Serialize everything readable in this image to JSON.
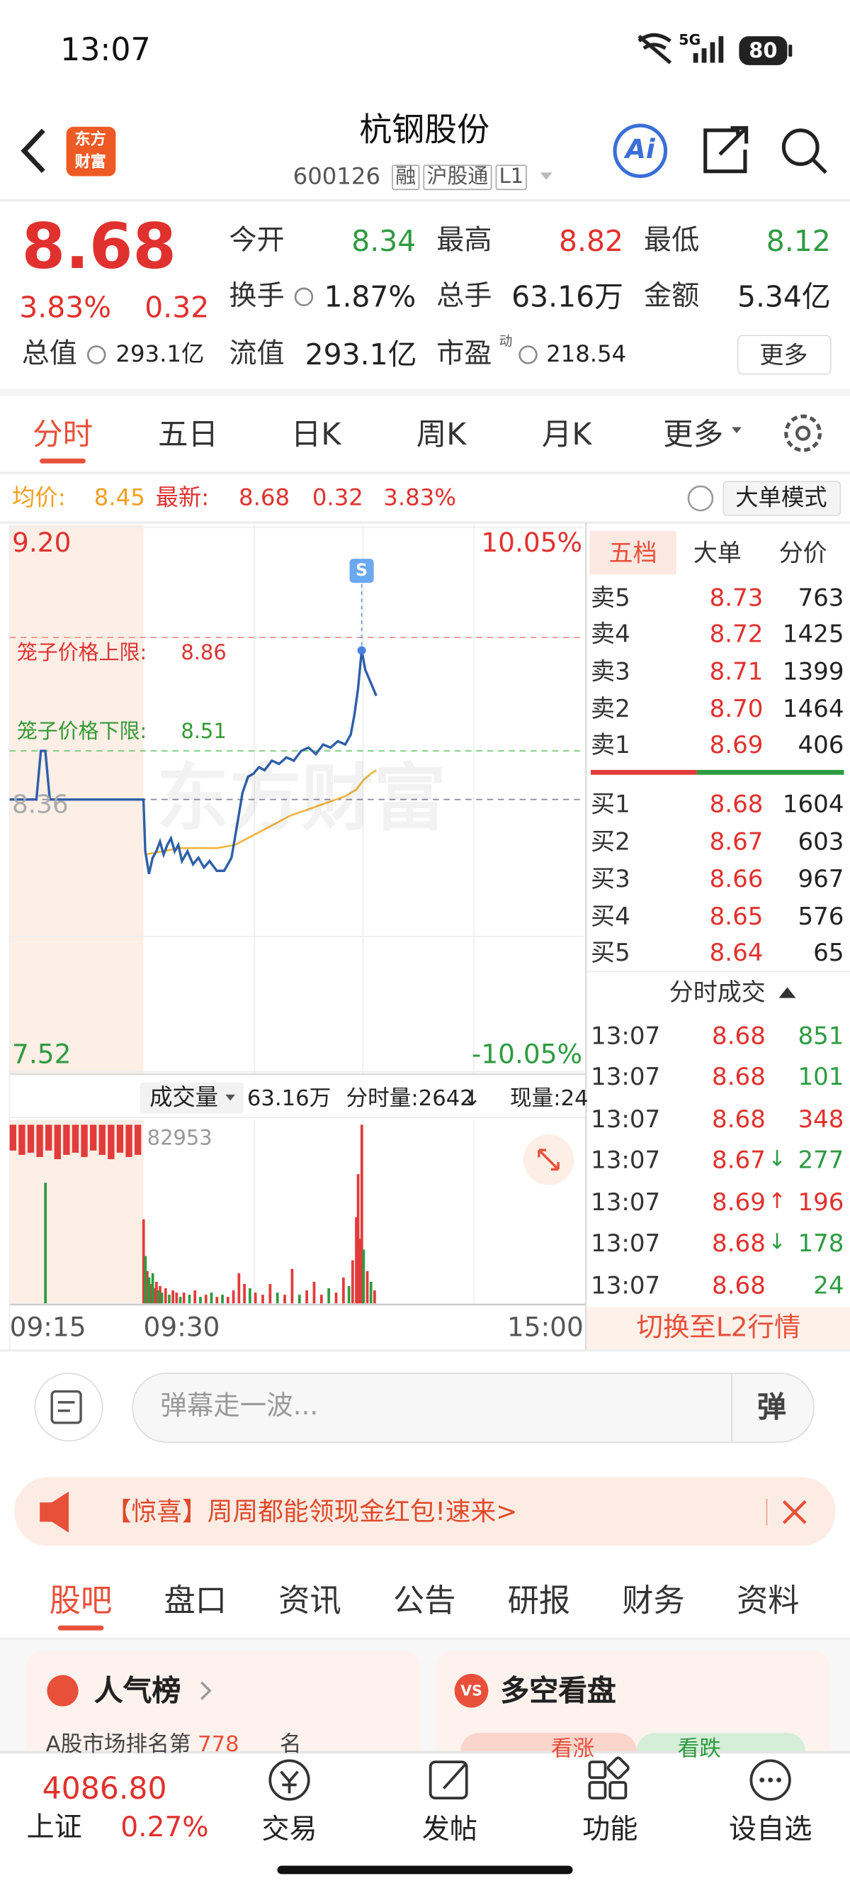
{
  "status": {
    "time": "13:07",
    "network": "5G",
    "battery": "80"
  },
  "header": {
    "logo": [
      "东方",
      "财富"
    ],
    "title": "杭钢股份",
    "code": "600126",
    "tags": [
      "融",
      "沪股通",
      "L1"
    ],
    "ai": "Ai"
  },
  "quote": {
    "price": "8.68",
    "change_pct": "3.83%",
    "change": "0.32",
    "fields": [
      {
        "label": "今开",
        "value": "8.34",
        "color": "#2e9b41"
      },
      {
        "label": "最高",
        "value": "8.82",
        "color": "#e0312e"
      },
      {
        "label": "最低",
        "value": "8.12",
        "color": "#2e9b41"
      },
      {
        "label": "换手",
        "value": "1.87%",
        "color": "#222222"
      },
      {
        "label": "总手",
        "value": "63.16万",
        "color": "#222222"
      },
      {
        "label": "金额",
        "value": "5.34亿",
        "color": "#222222"
      }
    ],
    "market_cap": {
      "label": "总值",
      "value": "293.1亿"
    },
    "float_cap": {
      "label": "流值",
      "value": "293.1亿"
    },
    "pe": {
      "label": "市盈",
      "sup": "动",
      "value": "218.54"
    },
    "more": "更多"
  },
  "tabs": [
    "分时",
    "五日",
    "日K",
    "周K",
    "月K",
    "更多"
  ],
  "info": {
    "avg_label": "均价:",
    "avg": "8.45",
    "latest_label": "最新:",
    "latest": "8.68",
    "change": "0.32",
    "change_pct": "3.83%",
    "mode": "大单模式"
  },
  "intraday": {
    "ylim": [
      7.52,
      9.2
    ],
    "yticks": [
      {
        "value": 9.2,
        "label": "9.20"
      },
      7.52
    ],
    "pct_labels": [
      "10.05%",
      "-10.05%"
    ],
    "prev_close": 8.36,
    "xticks": [
      "09:15",
      "09:30",
      "15:00"
    ],
    "watermark": "东方财富",
    "signal": "S",
    "cage_upper": {
      "label": "笼子价格上限:",
      "value": 8.86
    },
    "cage_lower": {
      "label": "笼子价格下限:",
      "value": 8.51
    },
    "price": {
      "color": "#2f5fa8",
      "x": [
        -15,
        -12,
        -11.5,
        -11,
        -10.5,
        0,
        1,
        3,
        5,
        7,
        9,
        11,
        13,
        15,
        17,
        19,
        21,
        24,
        27,
        30,
        33,
        36,
        40,
        44,
        48,
        51,
        54,
        57,
        60,
        63,
        66,
        70,
        74,
        78,
        82,
        86,
        90,
        94,
        98,
        102,
        106,
        110,
        113,
        115,
        117,
        119,
        121,
        124,
        127
      ],
      "values": [
        8.36,
        8.36,
        8.51,
        8.51,
        8.36,
        8.36,
        8.2,
        8.13,
        8.18,
        8.2,
        8.23,
        8.19,
        8.22,
        8.24,
        8.2,
        8.22,
        8.17,
        8.2,
        8.16,
        8.18,
        8.15,
        8.17,
        8.14,
        8.14,
        8.18,
        8.28,
        8.38,
        8.43,
        8.44,
        8.46,
        8.45,
        8.48,
        8.47,
        8.49,
        8.48,
        8.51,
        8.52,
        8.5,
        8.53,
        8.52,
        8.54,
        8.53,
        8.56,
        8.62,
        8.7,
        8.82,
        8.76,
        8.72,
        8.68
      ]
    },
    "avg": {
      "color": "#f2b43a",
      "x": [
        1,
        10,
        20,
        30,
        40,
        50,
        60,
        70,
        80,
        90,
        100,
        110,
        116,
        120,
        124,
        127
      ],
      "values": [
        8.19,
        8.2,
        8.21,
        8.21,
        8.21,
        8.22,
        8.25,
        8.28,
        8.31,
        8.33,
        8.35,
        8.37,
        8.39,
        8.42,
        8.44,
        8.45
      ]
    }
  },
  "volume": {
    "title": "成交量",
    "total": "63.16万",
    "minute_label": "分时量:2642",
    "minute_arrow": "↓",
    "current": "现量:24",
    "ylim": [
      0,
      82953
    ],
    "yticks": [
      82953
    ],
    "auction": {
      "color": "#e23b3b",
      "x": [
        -15,
        -14,
        -13,
        -12,
        -11,
        -10,
        -9,
        -8,
        -7,
        -6,
        -5,
        -4,
        -3,
        -2,
        -1
      ],
      "values": [
        12000,
        14000,
        13000,
        15000,
        12000,
        16000,
        14000,
        13000,
        15000,
        12000,
        14000,
        16000,
        13000,
        15000,
        14000
      ]
    },
    "series": [
      {
        "color": "#e23b3b",
        "x": [
          0,
          2,
          4,
          6,
          7,
          9,
          12,
          16,
          18,
          22,
          28,
          34,
          40,
          46,
          49,
          52,
          55,
          61,
          65,
          69,
          77,
          81,
          89,
          93,
          97,
          105,
          109,
          114,
          116,
          117,
          118,
          119,
          122,
          126
        ],
        "values": [
          39000,
          15000,
          9000,
          7000,
          10000,
          8000,
          7000,
          6000,
          5000,
          5000,
          6000,
          4000,
          3000,
          3000,
          6000,
          14000,
          9000,
          5000,
          4000,
          9000,
          4000,
          16000,
          6000,
          10000,
          4000,
          5000,
          12000,
          20000,
          40000,
          60000,
          30000,
          82953,
          15000,
          6000
        ]
      },
      {
        "color": "#2e9b41",
        "x": [
          -11,
          1,
          3,
          5,
          8,
          10,
          14,
          20,
          25,
          31,
          37,
          43,
          58,
          73,
          85,
          101,
          112,
          120,
          124
        ],
        "values": [
          56000,
          22000,
          12000,
          14000,
          6000,
          5000,
          4000,
          3000,
          4000,
          3000,
          5000,
          4000,
          7000,
          5000,
          4000,
          7000,
          8000,
          25000,
          10000
        ]
      }
    ]
  },
  "order_book": {
    "tabs": [
      "五档",
      "大单",
      "分价"
    ],
    "asks": [
      {
        "label": "卖5",
        "price": "8.73",
        "volume": "763"
      },
      {
        "label": "卖4",
        "price": "8.72",
        "volume": "1425"
      },
      {
        "label": "卖3",
        "price": "8.71",
        "volume": "1399"
      },
      {
        "label": "卖2",
        "price": "8.70",
        "volume": "1464"
      },
      {
        "label": "卖1",
        "price": "8.69",
        "volume": "406"
      }
    ],
    "bids": [
      {
        "label": "买1",
        "price": "8.68",
        "volume": "1604"
      },
      {
        "label": "买2",
        "price": "8.67",
        "volume": "603"
      },
      {
        "label": "买3",
        "price": "8.66",
        "volume": "967"
      },
      {
        "label": "买4",
        "price": "8.65",
        "volume": "576"
      },
      {
        "label": "买5",
        "price": "8.64",
        "volume": "65"
      }
    ],
    "trades_title": "分时成交",
    "trades": [
      {
        "time": "13:07",
        "price": "8.68",
        "volume": "851",
        "volume_color": "#2e9b41"
      },
      {
        "time": "13:07",
        "price": "8.68",
        "volume": "101",
        "volume_color": "#2e9b41"
      },
      {
        "time": "13:07",
        "price": "8.68",
        "volume": "348",
        "volume_color": "#e0312e"
      },
      {
        "time": "13:07",
        "price": "8.67",
        "arrow": "↓",
        "arrow_color": "#2e9b41",
        "volume": "277",
        "volume_color": "#2e9b41"
      },
      {
        "time": "13:07",
        "price": "8.69",
        "arrow": "↑",
        "arrow_color": "#e0312e",
        "volume": "196",
        "volume_color": "#e0312e"
      },
      {
        "time": "13:07",
        "price": "8.68",
        "arrow": "↓",
        "arrow_color": "#2e9b41",
        "volume": "178",
        "volume_color": "#2e9b41"
      },
      {
        "time": "13:07",
        "price": "8.68",
        "volume": "24",
        "volume_color": "#2e9b41"
      }
    ],
    "l2_button": "切换至L2行情"
  },
  "comment": {
    "placeholder": "弹幕走一波...",
    "danmu": "弹"
  },
  "banner": {
    "text": "【惊喜】周周都能领现金红包!速来>"
  },
  "section_tabs": [
    "股吧",
    "盘口",
    "资讯",
    "公告",
    "研报",
    "财务",
    "资料"
  ],
  "cards": [
    {
      "title": "人气榜",
      "line": [
        "A股市场排名第",
        "778",
        "名"
      ]
    },
    {
      "title": "多空看盘",
      "badge": "VS",
      "pills": [
        "看涨",
        "看跌"
      ]
    }
  ],
  "bottom_nav": {
    "index": {
      "value": "4086.80",
      "name": "上证",
      "change_pct": "0.27%"
    },
    "items": [
      "交易",
      "发帖",
      "功能",
      "设自选"
    ]
  }
}
